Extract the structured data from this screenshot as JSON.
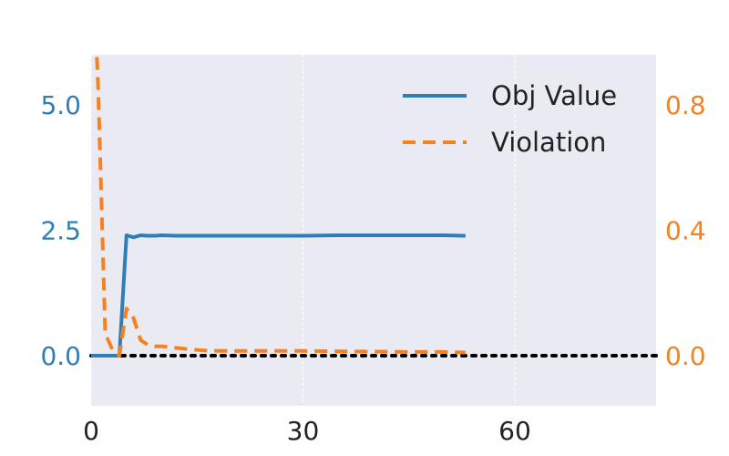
{
  "chart_data": {
    "type": "line",
    "x": [
      0,
      1,
      2,
      3,
      4,
      5,
      6,
      7,
      8,
      9,
      10,
      12,
      14,
      16,
      18,
      20,
      25,
      30,
      35,
      40,
      45,
      50,
      53
    ],
    "xlim": [
      0,
      80
    ],
    "xticks": [
      0,
      30,
      60
    ],
    "xtick_labels": [
      "0",
      "30",
      "60"
    ],
    "grid": true,
    "legend_position": "top-right",
    "reference_line": {
      "y": 0,
      "style": "dotted",
      "color": "#000000"
    },
    "series": [
      {
        "name": "Obj Value",
        "axis": "left",
        "style": "solid",
        "values": [
          0.0,
          0.0,
          0.0,
          0.0,
          0.0,
          2.4,
          2.36,
          2.4,
          2.39,
          2.39,
          2.4,
          2.39,
          2.39,
          2.39,
          2.39,
          2.39,
          2.39,
          2.39,
          2.4,
          2.4,
          2.4,
          2.4,
          2.39
        ]
      },
      {
        "name": "Violation",
        "axis": "right",
        "style": "dashed",
        "values": [
          1.4,
          0.85,
          0.07,
          0.02,
          0.0,
          0.15,
          0.12,
          0.05,
          0.035,
          0.03,
          0.03,
          0.025,
          0.02,
          0.017,
          0.015,
          0.015,
          0.015,
          0.015,
          0.014,
          0.013,
          0.012,
          0.012,
          0.01
        ]
      }
    ],
    "y_left": {
      "lim": [
        -1.0,
        6.0
      ],
      "ticks": [
        0.0,
        2.5,
        5.0
      ],
      "tick_labels": [
        "0.0",
        "2.5",
        "5.0"
      ],
      "color": "#2f7fb6"
    },
    "y_right": {
      "lim": [
        -0.16,
        0.96
      ],
      "ticks": [
        0.0,
        0.4,
        0.8
      ],
      "tick_labels": [
        "0.0",
        "0.4",
        "0.8"
      ],
      "color": "#f58220"
    },
    "colors": {
      "plot_bg": "#eaeaf2",
      "grid": "#ffffff",
      "obj": "#2f7fb6",
      "violation": "#f58220"
    }
  }
}
